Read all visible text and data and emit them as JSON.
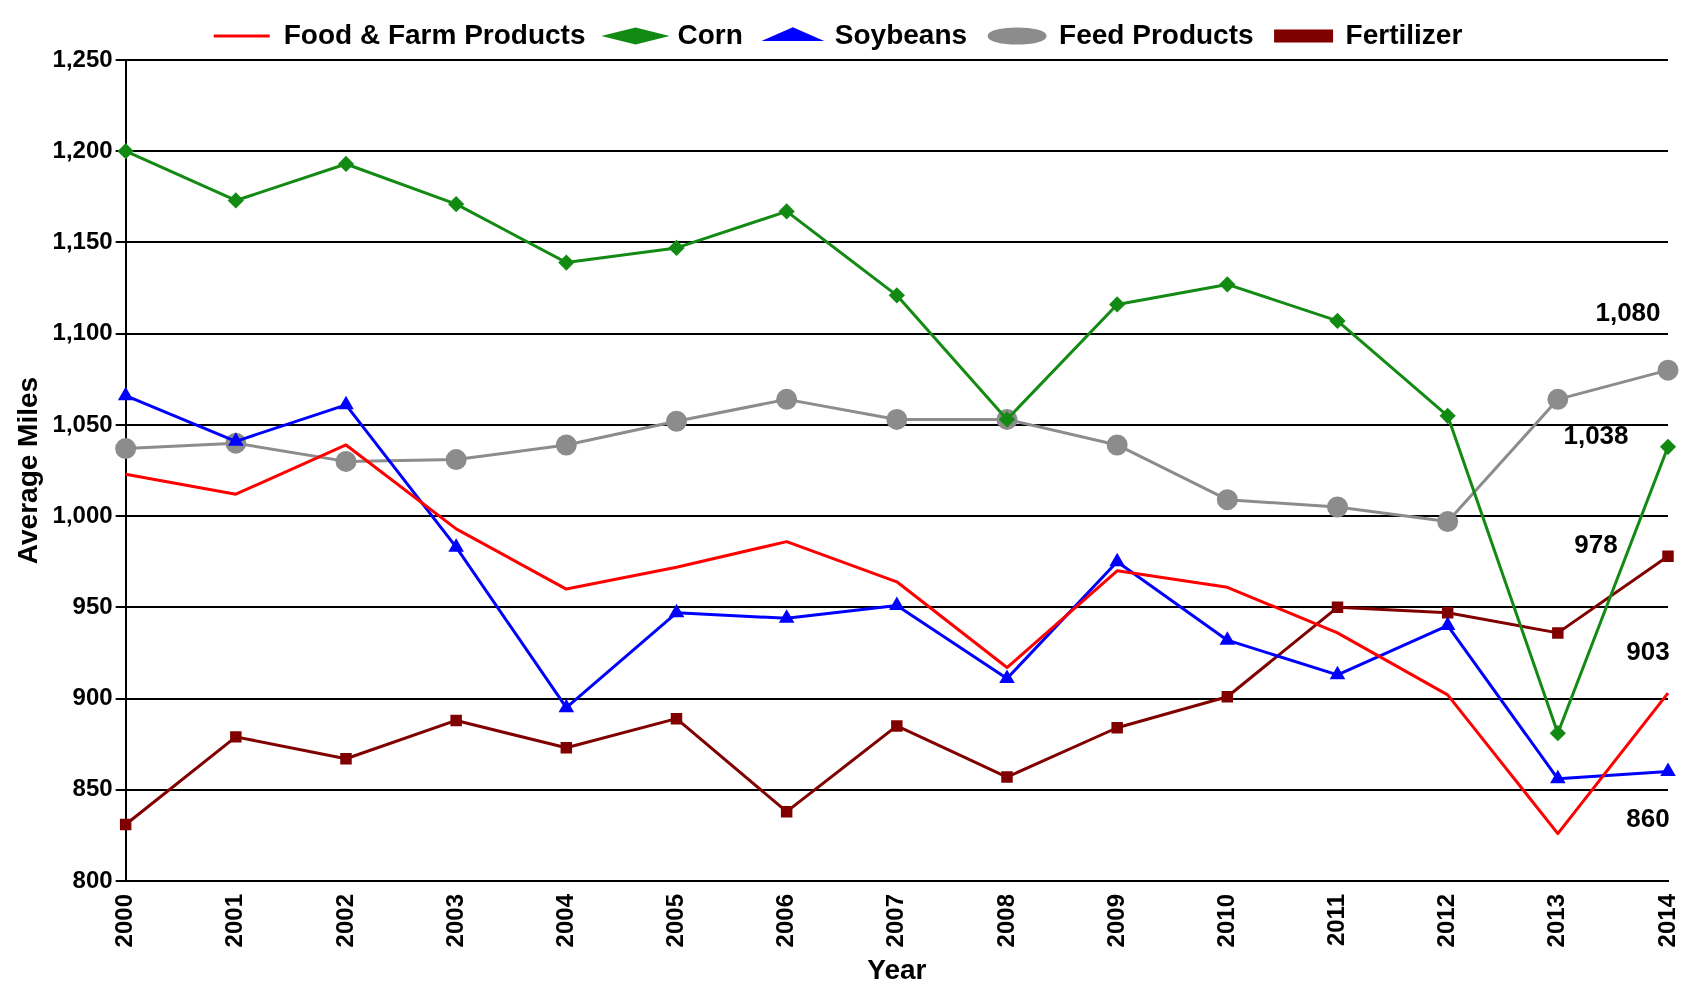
{
  "chart_data": {
    "type": "line",
    "xlabel": "Year",
    "ylabel": "Average Miles",
    "categories": [
      "2000",
      "2001",
      "2002",
      "2003",
      "2004",
      "2005",
      "2006",
      "2007",
      "2008",
      "2009",
      "2010",
      "2011",
      "2012",
      "2013",
      "2014"
    ],
    "series": [
      {
        "name": "Food & Farm Products",
        "color": "#ff0000",
        "marker": "none",
        "values": [
          1023,
          1012,
          1039,
          993,
          960,
          972,
          986,
          964,
          917,
          970,
          961,
          936,
          902,
          826,
          903
        ],
        "value_labels": [
          null,
          null,
          null,
          null,
          null,
          null,
          null,
          null,
          null,
          null,
          null,
          null,
          null,
          null,
          "903"
        ]
      },
      {
        "name": "Corn",
        "color": "#138a13",
        "marker": "diamond",
        "values": [
          1200,
          1173,
          1193,
          1171,
          1139,
          1147,
          1167,
          1121,
          1053,
          1116,
          1127,
          1107,
          1055,
          881,
          1038
        ],
        "value_labels": [
          null,
          null,
          null,
          null,
          null,
          null,
          null,
          null,
          null,
          null,
          null,
          null,
          null,
          null,
          "1,038"
        ]
      },
      {
        "name": "Soybeans",
        "color": "#0000ff",
        "marker": "triangle",
        "values": [
          1066,
          1041,
          1061,
          983,
          895,
          947,
          944,
          951,
          911,
          975,
          932,
          913,
          940,
          856,
          860
        ],
        "value_labels": [
          null,
          null,
          null,
          null,
          null,
          null,
          null,
          null,
          null,
          null,
          null,
          null,
          null,
          null,
          "860"
        ]
      },
      {
        "name": "Feed Products",
        "color": "#8c8c8c",
        "marker": "circle",
        "values": [
          1037,
          1040,
          1030,
          1031,
          1039,
          1052,
          1064,
          1053,
          1053,
          1039,
          1009,
          1005,
          997,
          1064,
          1080
        ],
        "value_labels": [
          null,
          null,
          null,
          null,
          null,
          null,
          null,
          null,
          null,
          null,
          null,
          null,
          null,
          null,
          "1,080"
        ]
      },
      {
        "name": "Fertilizer",
        "color": "#800000",
        "marker": "square",
        "values": [
          831,
          879,
          867,
          888,
          873,
          889,
          838,
          885,
          857,
          884,
          901,
          950,
          947,
          936,
          978
        ],
        "value_labels": [
          null,
          null,
          null,
          null,
          null,
          null,
          null,
          null,
          null,
          null,
          null,
          null,
          null,
          null,
          "978"
        ]
      }
    ],
    "ylim": [
      800,
      1250
    ],
    "yticks": [
      {
        "value": 800,
        "label": "800"
      },
      {
        "value": 850,
        "label": "850"
      },
      {
        "value": 900,
        "label": "900"
      },
      {
        "value": 950,
        "label": "950"
      },
      {
        "value": 1000,
        "label": "1,000"
      },
      {
        "value": 1050,
        "label": "1,050"
      },
      {
        "value": 1100,
        "label": "1,100"
      },
      {
        "value": 1150,
        "label": "1,150"
      },
      {
        "value": 1200,
        "label": "1,200"
      },
      {
        "value": 1250,
        "label": "1,250"
      }
    ],
    "grid": "y",
    "legend": "top"
  }
}
